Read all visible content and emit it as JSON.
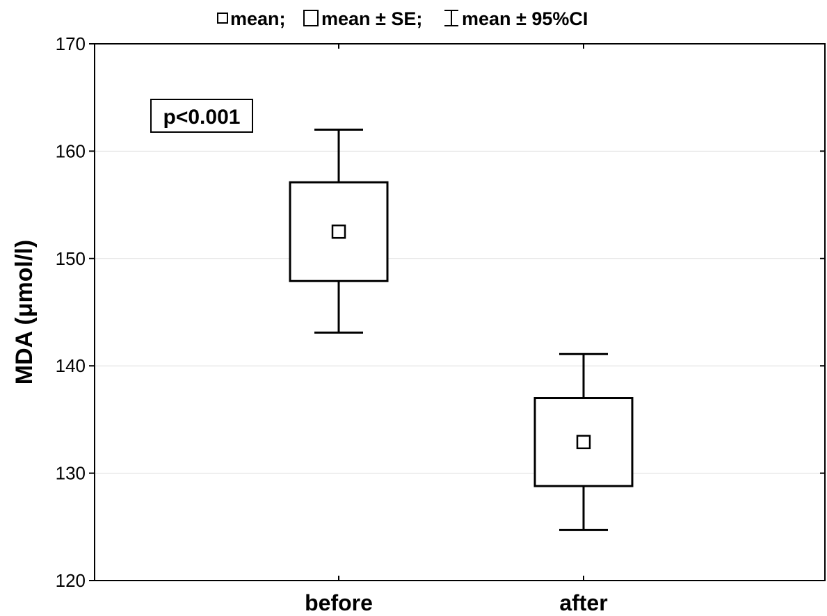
{
  "chart_data": {
    "type": "box",
    "ylabel": "MDA (μmol/l)",
    "ylim": [
      120,
      170
    ],
    "yticks": [
      120,
      130,
      140,
      150,
      160,
      170
    ],
    "grid": true,
    "categories": [
      "before",
      "after"
    ],
    "stats": [
      {
        "category": "before",
        "mean": 152.5,
        "se_low": 147.9,
        "se_high": 157.1,
        "ci_low": 143.1,
        "ci_high": 162.0
      },
      {
        "category": "after",
        "mean": 132.9,
        "se_low": 128.8,
        "se_high": 137.0,
        "ci_low": 124.7,
        "ci_high": 141.1
      }
    ],
    "legend": {
      "position": "top-center",
      "items": [
        {
          "symbol": "small-square",
          "label": "mean;"
        },
        {
          "symbol": "box",
          "label": "mean ± SE;"
        },
        {
          "symbol": "whisker",
          "label": "mean ± 95%CI"
        }
      ]
    },
    "annotation": {
      "text": "p<0.001",
      "position": "top-left"
    }
  }
}
